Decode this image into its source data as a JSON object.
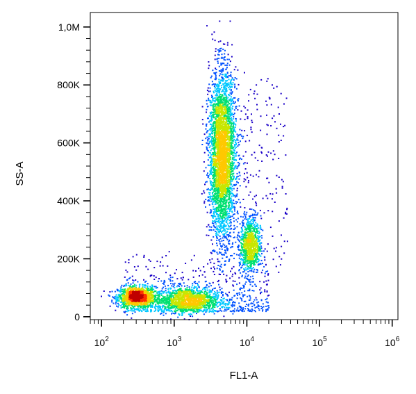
{
  "chart_data": {
    "type": "scatter",
    "title": "",
    "xlabel": "FL1-A",
    "ylabel": "SS-A",
    "xscale": "log",
    "xlim": [
      70,
      1200000
    ],
    "ylim": [
      -10000,
      1050000
    ],
    "x_ticks": [
      {
        "value": 100,
        "base": "10",
        "exp": "2"
      },
      {
        "value": 1000,
        "base": "10",
        "exp": "3"
      },
      {
        "value": 10000,
        "base": "10",
        "exp": "4"
      },
      {
        "value": 100000,
        "base": "10",
        "exp": "5"
      },
      {
        "value": 1000000,
        "base": "10",
        "exp": "6"
      }
    ],
    "y_ticks": [
      {
        "value": 0,
        "label": "0"
      },
      {
        "value": 200000,
        "label": "200K"
      },
      {
        "value": 400000,
        "label": "400K"
      },
      {
        "value": 600000,
        "label": "600K"
      },
      {
        "value": 800000,
        "label": "800K"
      },
      {
        "value": 1000000,
        "label": "1,0M"
      }
    ],
    "colormap": [
      "#1a00c8",
      "#0050ff",
      "#00c8ff",
      "#00e070",
      "#c8e600",
      "#ffc800",
      "#ff3000",
      "#c00000"
    ],
    "populations": [
      {
        "center_x": 300,
        "center_y": 70000,
        "spread_log_x": 0.13,
        "spread_y": 18000,
        "count": 1300
      },
      {
        "center_x": 1500,
        "center_y": 60000,
        "spread_log_x": 0.22,
        "spread_y": 22000,
        "count": 1300
      },
      {
        "center_x": 4500,
        "center_y": 560000,
        "spread_log_x": 0.09,
        "spread_y": 140000,
        "count": 3600
      },
      {
        "center_x": 11000,
        "center_y": 250000,
        "spread_log_x": 0.07,
        "spread_y": 50000,
        "count": 900
      }
    ]
  }
}
